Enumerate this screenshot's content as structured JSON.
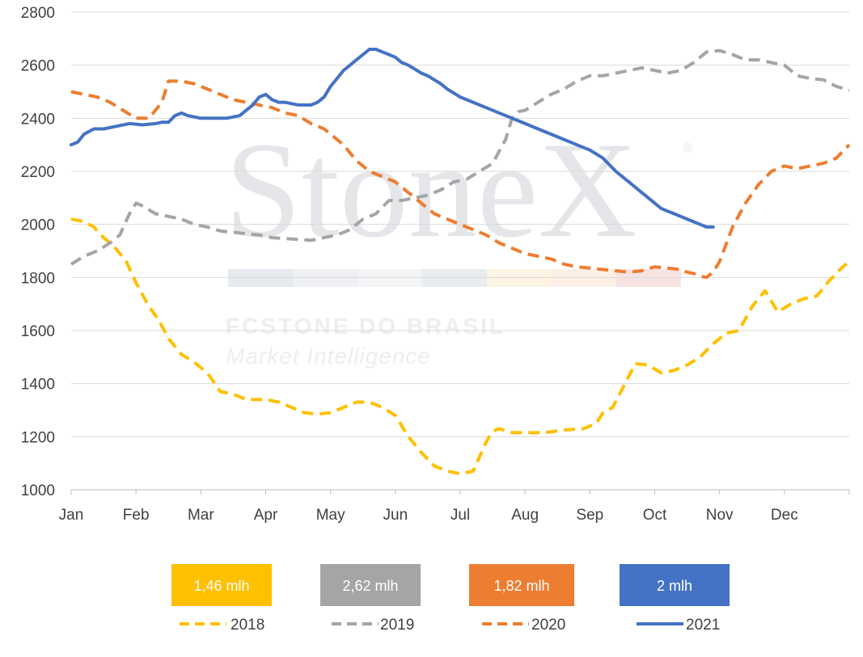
{
  "watermark": {
    "brand": "StoneX",
    "registered": "®",
    "line1": "FCSTONE DO BRASIL",
    "line2": "Market Intelligence"
  },
  "chart_data": {
    "type": "line",
    "title": "",
    "xlabel": "",
    "ylabel": "",
    "ylim": [
      1000,
      2800
    ],
    "yticks": [
      1000,
      1200,
      1400,
      1600,
      1800,
      2000,
      2200,
      2400,
      2600,
      2800
    ],
    "categories": [
      "Jan",
      "Feb",
      "Mar",
      "Apr",
      "May",
      "Jun",
      "Jul",
      "Aug",
      "Sep",
      "Oct",
      "Nov",
      "Dec"
    ],
    "grid": "horizontal",
    "legend_position": "bottom",
    "series": [
      {
        "name": "2018",
        "color": "#ffc000",
        "style": "dashed",
        "box_label": "1,46 mlh",
        "x": [
          0,
          0.2,
          0.35,
          0.5,
          0.65,
          0.85,
          1.0,
          1.2,
          1.35,
          1.5,
          1.7,
          1.9,
          2.1,
          2.3,
          2.5,
          2.7,
          3.0,
          3.2,
          3.4,
          3.6,
          3.8,
          4.0,
          4.2,
          4.4,
          4.6,
          4.8,
          5.0,
          5.2,
          5.4,
          5.6,
          5.8,
          6.0,
          6.2,
          6.4,
          6.5,
          6.6,
          6.8,
          7.0,
          7.3,
          7.6,
          7.9,
          8.1,
          8.2,
          8.35,
          8.5,
          8.7,
          8.9,
          9.1,
          9.3,
          9.5,
          9.7,
          9.9,
          10.1,
          10.3,
          10.5,
          10.7,
          10.9,
          11.1,
          11.3,
          11.5,
          11.7,
          11.9,
          12.0
        ],
        "values": [
          2020,
          2010,
          1990,
          1950,
          1920,
          1860,
          1780,
          1690,
          1640,
          1570,
          1510,
          1480,
          1440,
          1370,
          1360,
          1340,
          1340,
          1330,
          1310,
          1290,
          1285,
          1290,
          1310,
          1330,
          1330,
          1310,
          1280,
          1200,
          1140,
          1090,
          1070,
          1060,
          1070,
          1180,
          1220,
          1230,
          1215,
          1215,
          1215,
          1225,
          1230,
          1250,
          1290,
          1310,
          1380,
          1475,
          1470,
          1440,
          1450,
          1470,
          1500,
          1550,
          1590,
          1600,
          1690,
          1750,
          1670,
          1700,
          1720,
          1730,
          1790,
          1840,
          1860
        ]
      },
      {
        "name": "2019",
        "color": "#a5a5a5",
        "style": "dashed",
        "box_label": "2,62 mlh",
        "x": [
          0,
          0.2,
          0.4,
          0.6,
          0.75,
          0.9,
          1.0,
          1.1,
          1.3,
          1.5,
          1.7,
          1.9,
          2.1,
          2.3,
          2.5,
          2.7,
          2.9,
          3.1,
          3.4,
          3.7,
          3.9,
          4.1,
          4.3,
          4.5,
          4.7,
          4.9,
          5.1,
          5.3,
          5.5,
          5.7,
          5.9,
          6.1,
          6.3,
          6.5,
          6.7,
          6.8,
          6.9,
          7.0,
          7.2,
          7.4,
          7.6,
          7.8,
          8.0,
          8.2,
          8.4,
          8.6,
          8.8,
          9.0,
          9.2,
          9.4,
          9.6,
          9.8,
          10.0,
          10.2,
          10.4,
          10.6,
          10.8,
          11.0,
          11.2,
          11.4,
          11.6,
          11.8,
          12.0
        ],
        "values": [
          1850,
          1880,
          1900,
          1930,
          1960,
          2040,
          2080,
          2070,
          2040,
          2030,
          2020,
          2000,
          1990,
          1975,
          1970,
          1965,
          1960,
          1950,
          1945,
          1940,
          1950,
          1960,
          1980,
          2020,
          2040,
          2090,
          2090,
          2100,
          2110,
          2130,
          2160,
          2170,
          2200,
          2230,
          2320,
          2400,
          2425,
          2430,
          2460,
          2490,
          2510,
          2540,
          2560,
          2560,
          2570,
          2580,
          2590,
          2580,
          2570,
          2580,
          2610,
          2650,
          2655,
          2640,
          2620,
          2620,
          2610,
          2600,
          2560,
          2550,
          2545,
          2520,
          2505
        ]
      },
      {
        "name": "2020",
        "color": "#ed7d31",
        "style": "dashed",
        "box_label": "1,82 mlh",
        "x": [
          0,
          0.2,
          0.4,
          0.6,
          0.8,
          1.0,
          1.2,
          1.4,
          1.5,
          1.7,
          1.9,
          2.1,
          2.3,
          2.5,
          2.7,
          2.9,
          3.1,
          3.3,
          3.5,
          3.7,
          3.9,
          4.0,
          4.2,
          4.4,
          4.6,
          4.8,
          5.0,
          5.2,
          5.4,
          5.6,
          5.8,
          6.0,
          6.2,
          6.4,
          6.6,
          6.8,
          7.0,
          7.2,
          7.4,
          7.6,
          7.8,
          8.0,
          8.2,
          8.4,
          8.6,
          8.8,
          9.0,
          9.2,
          9.4,
          9.5,
          9.6,
          9.7,
          9.8,
          9.9,
          10.0,
          10.2,
          10.4,
          10.6,
          10.8,
          11.0,
          11.2,
          11.4,
          11.6,
          11.8,
          12.0
        ],
        "values": [
          2500,
          2490,
          2480,
          2460,
          2430,
          2400,
          2400,
          2460,
          2540,
          2540,
          2530,
          2510,
          2490,
          2470,
          2460,
          2450,
          2440,
          2420,
          2410,
          2380,
          2360,
          2340,
          2300,
          2240,
          2200,
          2180,
          2160,
          2120,
          2080,
          2040,
          2020,
          2000,
          1980,
          1960,
          1930,
          1910,
          1890,
          1880,
          1870,
          1850,
          1840,
          1835,
          1830,
          1825,
          1820,
          1825,
          1840,
          1835,
          1830,
          1820,
          1815,
          1805,
          1800,
          1820,
          1860,
          1990,
          2080,
          2150,
          2200,
          2220,
          2210,
          2220,
          2230,
          2250,
          2300
        ]
      },
      {
        "name": "2021",
        "color": "#4472c4",
        "style": "solid",
        "box_label": "2 mlh",
        "x": [
          0,
          0.1,
          0.2,
          0.35,
          0.5,
          0.7,
          0.9,
          1.1,
          1.3,
          1.4,
          1.5,
          1.6,
          1.7,
          1.8,
          1.9,
          2.0,
          2.2,
          2.4,
          2.6,
          2.8,
          2.9,
          3.0,
          3.1,
          3.2,
          3.3,
          3.5,
          3.7,
          3.8,
          3.9,
          4.0,
          4.1,
          4.2,
          4.3,
          4.4,
          4.5,
          4.6,
          4.7,
          4.8,
          4.9,
          5.0,
          5.1,
          5.2,
          5.3,
          5.4,
          5.5,
          5.6,
          5.7,
          5.8,
          5.9,
          6.0,
          6.2,
          6.4,
          6.6,
          6.8,
          7.0,
          7.2,
          7.4,
          7.6,
          7.8,
          8.0,
          8.2,
          8.4,
          8.6,
          8.8,
          8.9,
          9.0,
          9.1,
          9.2,
          9.3,
          9.4,
          9.5,
          9.6,
          9.7,
          9.8,
          9.9
        ],
        "values": [
          2300,
          2310,
          2340,
          2360,
          2360,
          2370,
          2380,
          2375,
          2380,
          2385,
          2385,
          2410,
          2420,
          2410,
          2405,
          2400,
          2400,
          2400,
          2410,
          2450,
          2480,
          2490,
          2470,
          2460,
          2460,
          2450,
          2450,
          2460,
          2480,
          2520,
          2550,
          2580,
          2600,
          2620,
          2640,
          2660,
          2660,
          2650,
          2640,
          2630,
          2610,
          2600,
          2585,
          2570,
          2560,
          2545,
          2530,
          2510,
          2495,
          2480,
          2460,
          2440,
          2420,
          2400,
          2380,
          2360,
          2340,
          2320,
          2300,
          2280,
          2250,
          2200,
          2160,
          2120,
          2100,
          2080,
          2060,
          2050,
          2040,
          2030,
          2020,
          2010,
          2000,
          1990,
          1990
        ]
      }
    ]
  }
}
